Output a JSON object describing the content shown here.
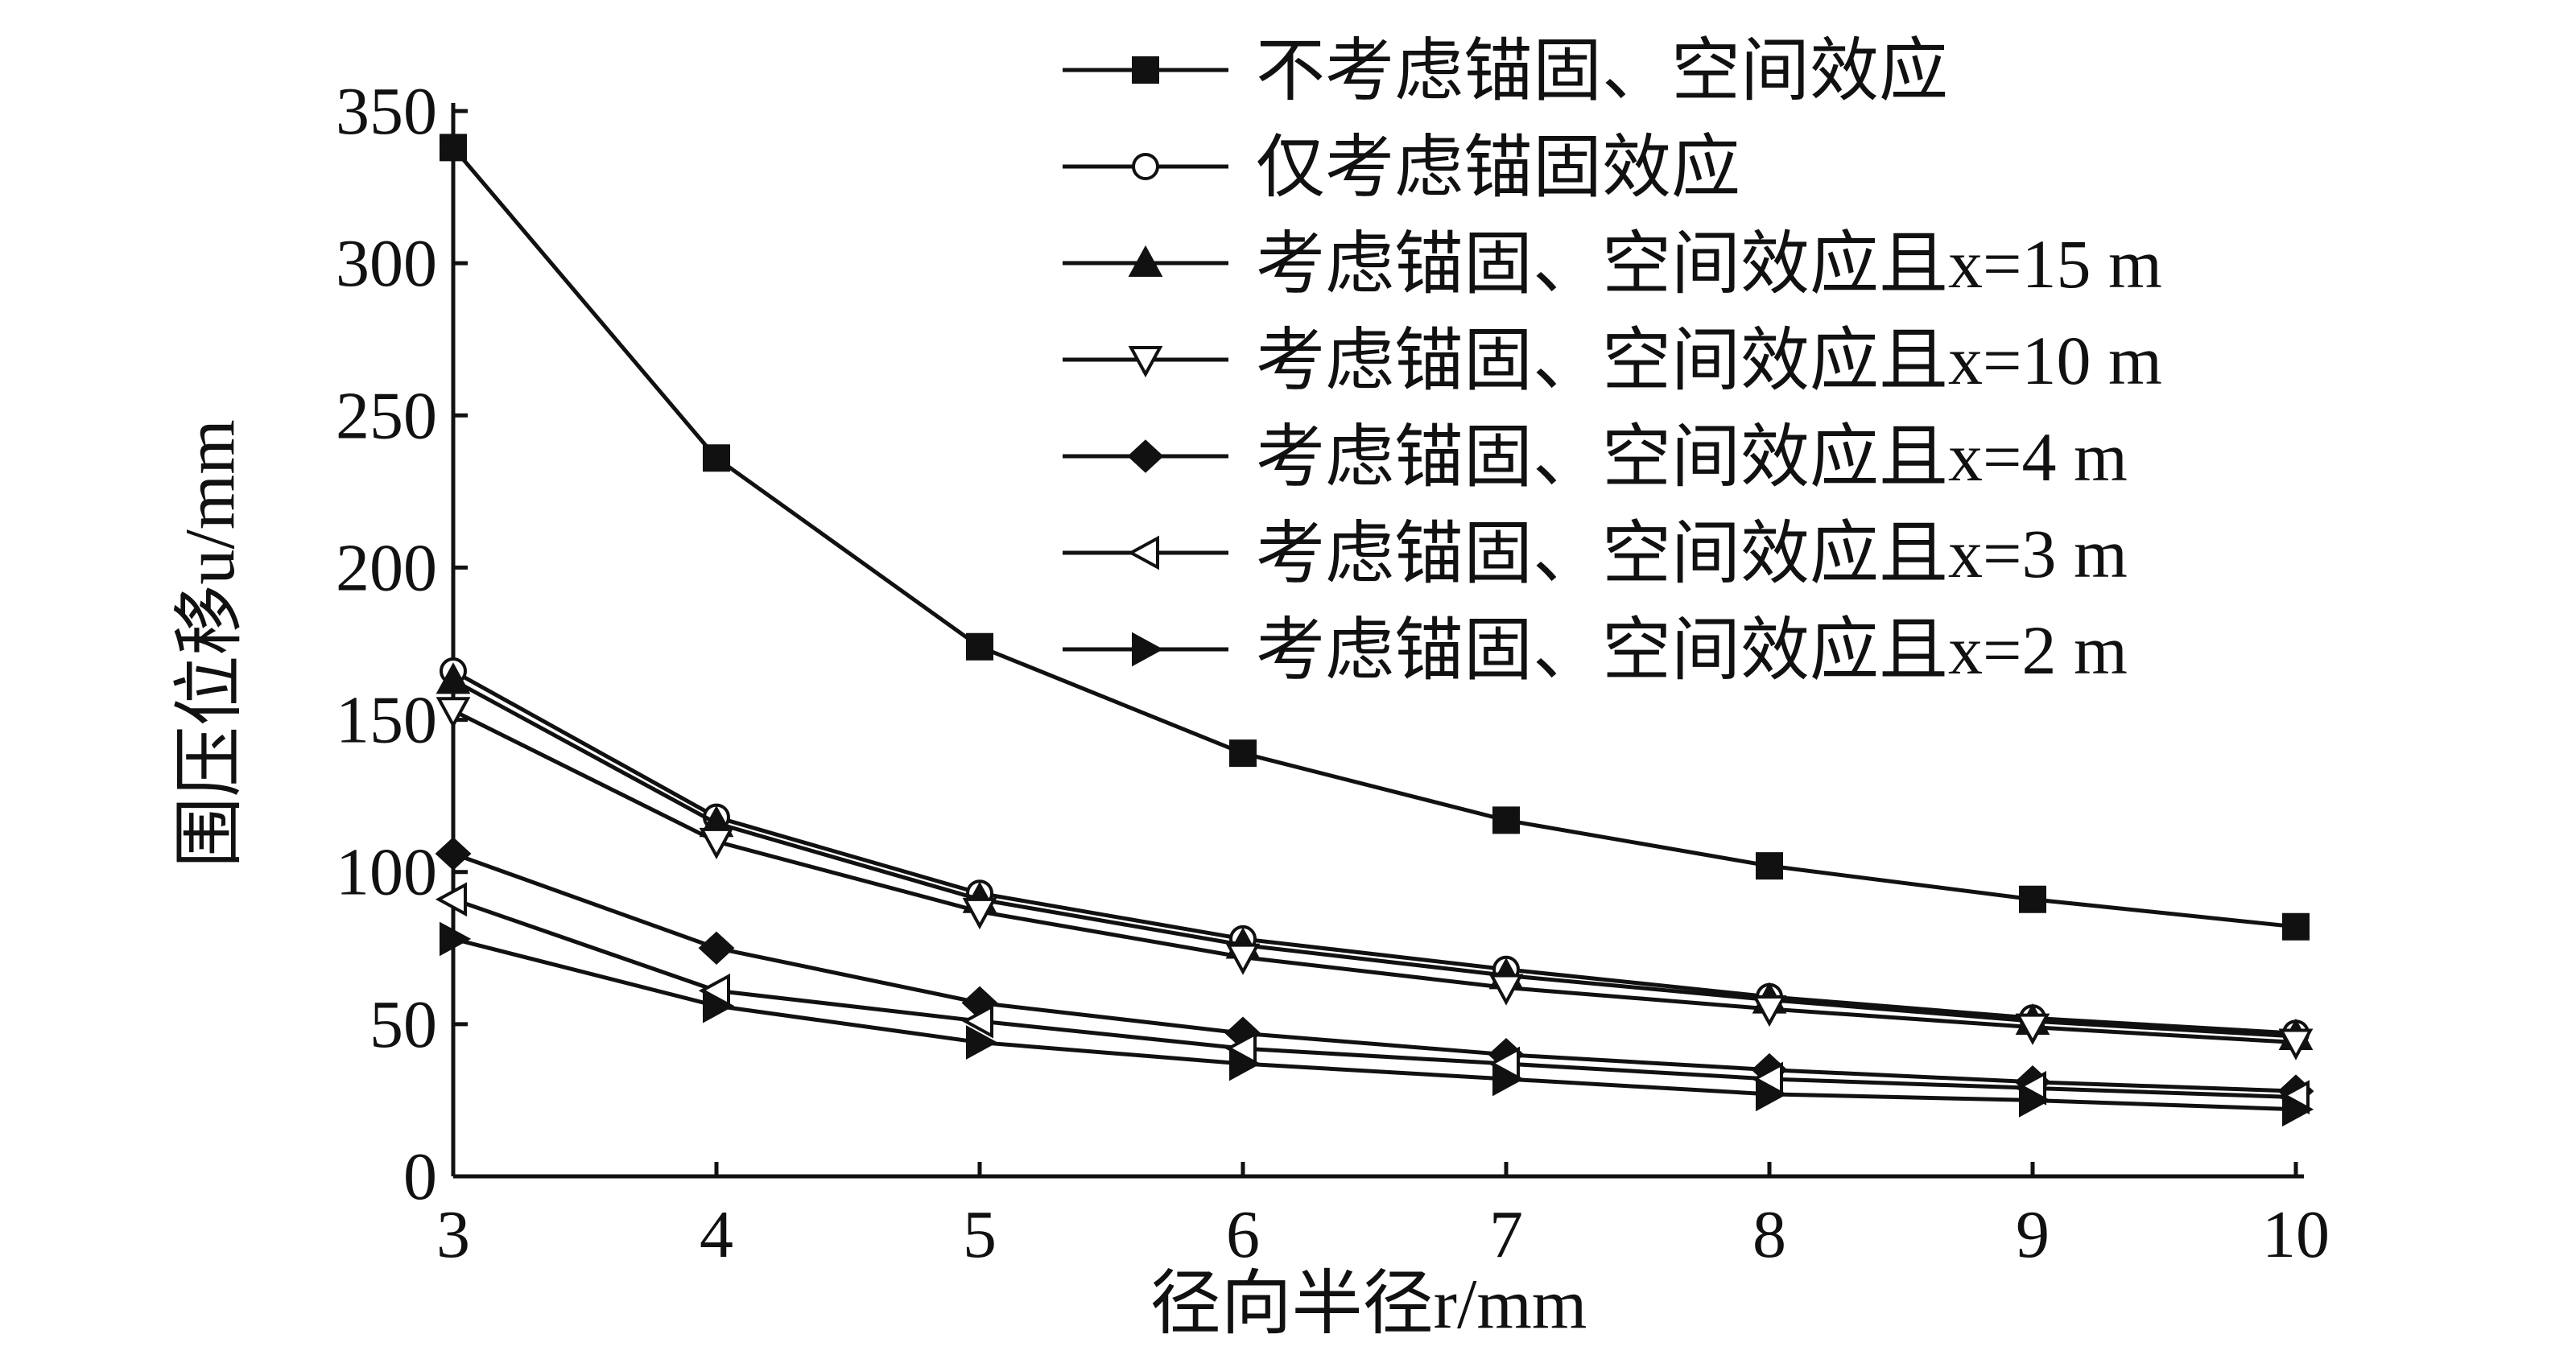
{
  "chart_data": {
    "type": "line",
    "x_label": "径向半径r/mm",
    "y_label": "围压位移u/mm",
    "x": [
      3,
      4,
      5,
      6,
      7,
      8,
      9,
      10
    ],
    "xlim": [
      3,
      10
    ],
    "xticks": [
      3,
      4,
      5,
      6,
      7,
      8,
      9,
      10
    ],
    "ylim": [
      0,
      350
    ],
    "yticks": [
      0,
      50,
      100,
      150,
      200,
      250,
      300,
      350
    ],
    "grid": false,
    "legend": "top-right",
    "series": [
      {
        "name": "不考虑锚固、空间效应",
        "color": "#111111",
        "marker": "square",
        "filled": true,
        "values": [
          338,
          236,
          174,
          139,
          117,
          102,
          91,
          82
        ]
      },
      {
        "name": "仅考虑锚固效应",
        "color": "#111111",
        "marker": "circle",
        "filled": false,
        "values": [
          166,
          118,
          93,
          78,
          68,
          59,
          52,
          47
        ]
      },
      {
        "name": "考虑锚固、空间效应且x=15 m",
        "color": "#111111",
        "marker": "triangle-up",
        "filled": true,
        "values": [
          163,
          116,
          91,
          76,
          66,
          58,
          51,
          46
        ]
      },
      {
        "name": "考虑锚固、空间效应且x=10 m",
        "color": "#111111",
        "marker": "triangle-down",
        "filled": false,
        "values": [
          153,
          110,
          87,
          72,
          62,
          55,
          49,
          44
        ]
      },
      {
        "name": "考虑锚固、空间效应且x=4 m",
        "color": "#111111",
        "marker": "diamond",
        "filled": true,
        "values": [
          106,
          75,
          57,
          47,
          40,
          35,
          31,
          28
        ]
      },
      {
        "name": "考虑锚固、空间效应且x=3 m",
        "color": "#111111",
        "marker": "triangle-left",
        "filled": false,
        "values": [
          91,
          61,
          51,
          42,
          37,
          32,
          29,
          26
        ]
      },
      {
        "name": "考虑锚固、空间效应且x=2 m",
        "color": "#111111",
        "marker": "triangle-right",
        "filled": true,
        "values": [
          78,
          56,
          44,
          37,
          32,
          27,
          25,
          22
        ]
      }
    ]
  }
}
